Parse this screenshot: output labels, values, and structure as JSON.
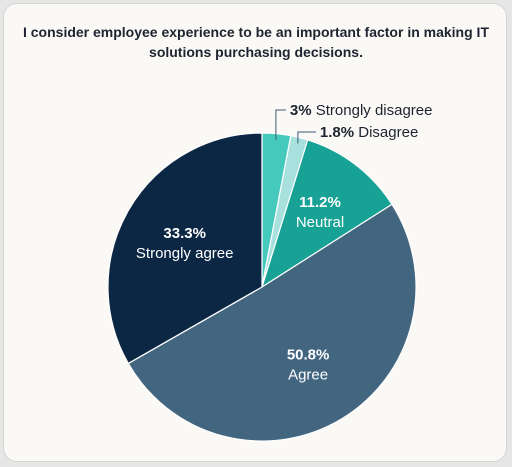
{
  "chart_data": {
    "type": "pie",
    "title_lines": [
      "I consider employee experience to be an important factor in making IT",
      "solutions purchasing decisions."
    ],
    "slices": [
      {
        "label": "Strongly disagree",
        "value": 3,
        "value_text": "3%",
        "color": "#45c9bd"
      },
      {
        "label": "Disagree",
        "value": 1.8,
        "value_text": "1.8%",
        "color": "#a7e0dd"
      },
      {
        "label": "Neutral",
        "value": 11.2,
        "value_text": "11.2%",
        "color": "#18a195"
      },
      {
        "label": "Agree",
        "value": 50.8,
        "value_text": "50.8%",
        "color": "#426580"
      },
      {
        "label": "Strongly agree",
        "value": 33.3,
        "value_text": "33.3%",
        "color": "#0c2744"
      }
    ]
  }
}
